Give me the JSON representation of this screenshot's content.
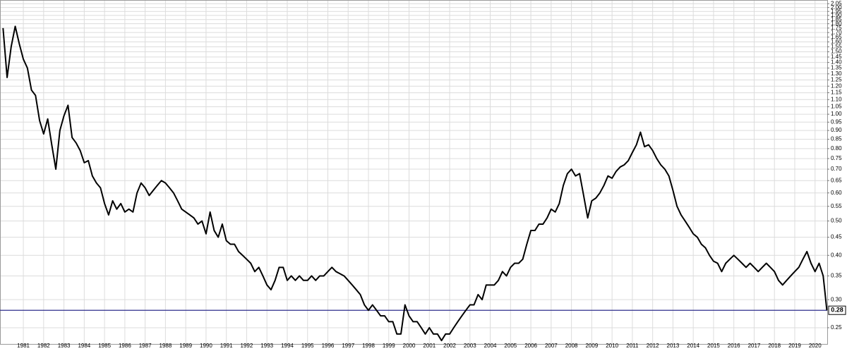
{
  "chart_data": {
    "type": "line",
    "log_y": true,
    "grid": true,
    "color": "#000000",
    "reference_line": {
      "value": 0.28,
      "color": "#2e2e8c"
    },
    "xlim": [
      1979.85,
      2020.6
    ],
    "xticks": [
      1981,
      1982,
      1983,
      1984,
      1985,
      1986,
      1987,
      1988,
      1989,
      1990,
      1991,
      1992,
      1993,
      1994,
      1995,
      1996,
      1997,
      1998,
      1999,
      2000,
      2001,
      2002,
      2003,
      2004,
      2005,
      2006,
      2007,
      2008,
      2009,
      2010,
      2011,
      2012,
      2013,
      2014,
      2015,
      2016,
      2017,
      2018,
      2019,
      2020
    ],
    "ylim": [
      0.225,
      2.1
    ],
    "yticks": [
      0.25,
      {
        "value": 0.3,
        "label": "0.30"
      },
      0.35,
      {
        "value": 0.4,
        "label": "0.40"
      },
      0.45,
      {
        "value": 0.5,
        "label": "0.50"
      },
      0.55,
      {
        "value": 0.6,
        "label": "0.60"
      },
      0.65,
      {
        "value": 0.7,
        "label": "0.70"
      },
      0.75,
      {
        "value": 0.8,
        "label": "0.80"
      },
      0.85,
      {
        "value": 0.9,
        "label": "0.90"
      },
      0.95,
      {
        "value": 1,
        "label": "1.00"
      },
      1.05,
      {
        "value": 1.1,
        "label": "1.10"
      },
      1.15,
      {
        "value": 1.2,
        "label": "1.20"
      },
      1.25,
      {
        "value": 1.3,
        "label": "1.30"
      },
      1.35,
      {
        "value": 1.4,
        "label": "1.40"
      },
      1.45,
      {
        "value": 1.5,
        "label": "1.50"
      },
      1.55,
      {
        "value": 1.6,
        "label": "1.60"
      },
      1.65,
      {
        "value": 1.7,
        "label": "1.70"
      },
      1.75,
      {
        "value": 1.8,
        "label": "1.80"
      },
      1.85,
      {
        "value": 1.9,
        "label": "1.90"
      },
      1.95,
      {
        "value": 2,
        "label": "2.00"
      },
      2.05
    ],
    "x": [
      1980,
      1980.2,
      1980.4,
      1980.6,
      1980.8,
      1981,
      1981.2,
      1981.4,
      1981.6,
      1981.8,
      1982,
      1982.2,
      1982.4,
      1982.6,
      1982.8,
      1983,
      1983.2,
      1983.4,
      1983.6,
      1983.8,
      1984,
      1984.2,
      1984.4,
      1984.6,
      1984.8,
      1985,
      1985.2,
      1985.4,
      1985.6,
      1985.8,
      1986,
      1986.2,
      1986.4,
      1986.6,
      1986.8,
      1987,
      1987.2,
      1987.4,
      1987.6,
      1987.8,
      1988,
      1988.2,
      1988.4,
      1988.6,
      1988.8,
      1989,
      1989.2,
      1989.4,
      1989.6,
      1989.8,
      1990,
      1990.2,
      1990.4,
      1990.6,
      1990.8,
      1991,
      1991.2,
      1991.4,
      1991.6,
      1991.8,
      1992,
      1992.2,
      1992.4,
      1992.6,
      1992.8,
      1993,
      1993.2,
      1993.4,
      1993.6,
      1993.8,
      1994,
      1994.2,
      1994.4,
      1994.6,
      1994.8,
      1995,
      1995.2,
      1995.4,
      1995.6,
      1995.8,
      1996,
      1996.2,
      1996.4,
      1996.6,
      1996.8,
      1997,
      1997.2,
      1997.4,
      1997.6,
      1997.8,
      1998,
      1998.2,
      1998.4,
      1998.6,
      1998.8,
      1999,
      1999.2,
      1999.4,
      1999.6,
      1999.8,
      2000,
      2000.2,
      2000.4,
      2000.6,
      2000.8,
      2001,
      2001.2,
      2001.4,
      2001.6,
      2001.8,
      2002,
      2002.2,
      2002.4,
      2002.6,
      2002.8,
      2003,
      2003.2,
      2003.4,
      2003.6,
      2003.8,
      2004,
      2004.2,
      2004.4,
      2004.6,
      2004.8,
      2005,
      2005.2,
      2005.4,
      2005.6,
      2005.8,
      2006,
      2006.2,
      2006.4,
      2006.6,
      2006.8,
      2007,
      2007.2,
      2007.4,
      2007.6,
      2007.8,
      2008,
      2008.2,
      2008.4,
      2008.6,
      2008.8,
      2009,
      2009.2,
      2009.4,
      2009.6,
      2009.8,
      2010,
      2010.2,
      2010.4,
      2010.6,
      2010.8,
      2011,
      2011.2,
      2011.4,
      2011.6,
      2011.8,
      2012,
      2012.2,
      2012.4,
      2012.6,
      2012.8,
      2013,
      2013.2,
      2013.4,
      2013.6,
      2013.8,
      2014,
      2014.2,
      2014.4,
      2014.6,
      2014.8,
      2015,
      2015.2,
      2015.4,
      2015.6,
      2015.8,
      2016,
      2016.2,
      2016.4,
      2016.6,
      2016.8,
      2017,
      2017.2,
      2017.4,
      2017.6,
      2017.8,
      2018,
      2018.2,
      2018.4,
      2018.6,
      2018.8,
      2019,
      2019.2,
      2019.4,
      2019.6,
      2019.8,
      2020,
      2020.2,
      2020.4,
      2020.5,
      2020.58
    ],
    "values": [
      1.75,
      1.27,
      1.55,
      1.77,
      1.58,
      1.43,
      1.35,
      1.17,
      1.13,
      0.96,
      0.88,
      0.97,
      0.82,
      0.7,
      0.9,
      0.99,
      1.06,
      0.86,
      0.83,
      0.79,
      0.73,
      0.74,
      0.67,
      0.64,
      0.62,
      0.56,
      0.52,
      0.57,
      0.54,
      0.56,
      0.53,
      0.54,
      0.53,
      0.6,
      0.64,
      0.62,
      0.59,
      0.61,
      0.63,
      0.65,
      0.64,
      0.62,
      0.6,
      0.57,
      0.54,
      0.53,
      0.52,
      0.51,
      0.49,
      0.5,
      0.46,
      0.53,
      0.47,
      0.45,
      0.49,
      0.44,
      0.43,
      0.43,
      0.41,
      0.4,
      0.39,
      0.38,
      0.36,
      0.37,
      0.35,
      0.33,
      0.32,
      0.34,
      0.37,
      0.37,
      0.34,
      0.35,
      0.34,
      0.35,
      0.34,
      0.34,
      0.35,
      0.34,
      0.35,
      0.35,
      0.36,
      0.37,
      0.36,
      0.355,
      0.35,
      0.34,
      0.33,
      0.32,
      0.31,
      0.29,
      0.28,
      0.29,
      0.28,
      0.27,
      0.27,
      0.26,
      0.26,
      0.24,
      0.24,
      0.29,
      0.27,
      0.26,
      0.26,
      0.25,
      0.24,
      0.25,
      0.24,
      0.24,
      0.23,
      0.24,
      0.24,
      0.25,
      0.26,
      0.27,
      0.28,
      0.29,
      0.29,
      0.31,
      0.3,
      0.33,
      0.33,
      0.33,
      0.34,
      0.36,
      0.35,
      0.37,
      0.38,
      0.38,
      0.39,
      0.43,
      0.47,
      0.47,
      0.49,
      0.49,
      0.51,
      0.54,
      0.53,
      0.56,
      0.63,
      0.68,
      0.7,
      0.67,
      0.68,
      0.59,
      0.51,
      0.57,
      0.58,
      0.6,
      0.63,
      0.67,
      0.66,
      0.69,
      0.71,
      0.72,
      0.74,
      0.78,
      0.82,
      0.89,
      0.81,
      0.82,
      0.79,
      0.75,
      0.72,
      0.7,
      0.67,
      0.61,
      0.55,
      0.52,
      0.5,
      0.48,
      0.46,
      0.45,
      0.43,
      0.42,
      0.4,
      0.385,
      0.38,
      0.36,
      0.38,
      0.39,
      0.4,
      0.39,
      0.38,
      0.37,
      0.38,
      0.37,
      0.36,
      0.37,
      0.38,
      0.37,
      0.36,
      0.34,
      0.33,
      0.34,
      0.35,
      0.36,
      0.37,
      0.39,
      0.41,
      0.38,
      0.36,
      0.38,
      0.35,
      0.31,
      0.28
    ]
  }
}
